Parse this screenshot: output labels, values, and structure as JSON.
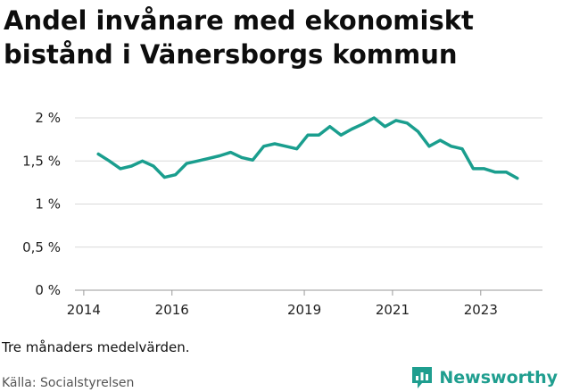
{
  "title": "Andel invånare med ekonomiskt bistånd i Vänersborgs kommun",
  "note": "Tre månaders medelvärden.",
  "source": "Källa: Socialstyrelsen",
  "brand": {
    "name": "Newsworthy",
    "icon": "newsworthy-logo-icon",
    "color": "#1f9e8f"
  },
  "chart_data": {
    "type": "line",
    "title": "Andel invånare med ekonomiskt bistånd i Vänersborgs kommun",
    "xlabel": "",
    "ylabel": "",
    "ylim": [
      0,
      2
    ],
    "xlim": [
      2013.8,
      2024.4
    ],
    "grid": true,
    "line_color": "#1a9e8e",
    "y_ticks": [
      {
        "value": 0,
        "label": "0 %"
      },
      {
        "value": 0.5,
        "label": "0,5 %"
      },
      {
        "value": 1,
        "label": "1 %"
      },
      {
        "value": 1.5,
        "label": "1,5 %"
      },
      {
        "value": 2,
        "label": "2 %"
      }
    ],
    "x_ticks": [
      {
        "value": 2014,
        "label": "2014"
      },
      {
        "value": 2016,
        "label": "2016"
      },
      {
        "value": 2019,
        "label": "2019"
      },
      {
        "value": 2021,
        "label": "2021"
      },
      {
        "value": 2023,
        "label": "2023"
      }
    ],
    "series": [
      {
        "x": [
          2014.33,
          2014.58,
          2014.83,
          2015.08,
          2015.33,
          2015.58,
          2015.83,
          2016.08,
          2016.33,
          2016.58,
          2016.83,
          2017.08,
          2017.33,
          2017.58,
          2017.83,
          2018.08,
          2018.33,
          2018.58,
          2018.83,
          2019.08,
          2019.33,
          2019.58,
          2019.83,
          2020.08,
          2020.33,
          2020.58,
          2020.83,
          2021.08,
          2021.33,
          2021.58,
          2021.83,
          2022.08,
          2022.33,
          2022.58,
          2022.83,
          2023.08,
          2023.33,
          2023.58,
          2023.83,
          2024.08
        ],
        "values": [
          1.58,
          1.5,
          1.41,
          1.44,
          1.5,
          1.44,
          1.31,
          1.34,
          1.47,
          1.5,
          1.53,
          1.56,
          1.6,
          1.54,
          1.51,
          1.67,
          1.7,
          1.67,
          1.64,
          1.8,
          1.8,
          1.9,
          1.8,
          1.87,
          1.93,
          2.0,
          1.9,
          1.97,
          1.94,
          1.84,
          1.67,
          1.74,
          1.67,
          1.64,
          1.41,
          1.41,
          1.37,
          1.37,
          1.3,
          null
        ]
      }
    ]
  }
}
